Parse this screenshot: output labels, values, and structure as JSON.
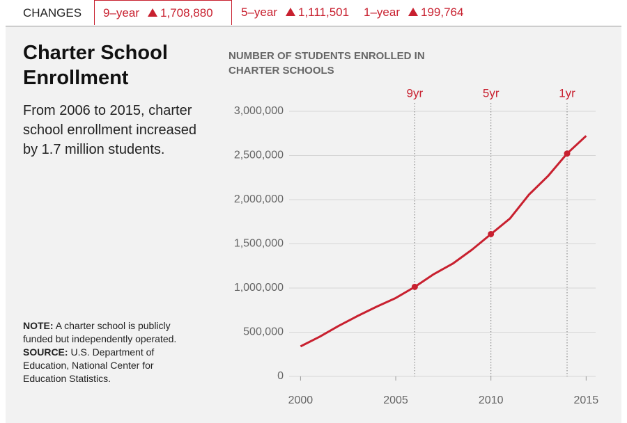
{
  "header": {
    "label": "CHANGES",
    "tabs": [
      {
        "label": "9–year",
        "value": "1,708,880",
        "active": true
      },
      {
        "label": "5–year",
        "value": "1,111,501",
        "active": false
      },
      {
        "label": "1–year",
        "value": "199,764",
        "active": false
      }
    ]
  },
  "chart_data": {
    "type": "line",
    "title": "Charter School Enrollment",
    "subtitle": "From 2006 to 2015, charter school enrollment increased by 1.7 million students.",
    "y_label": "NUMBER OF STUDENTS ENROLLED IN CHARTER SCHOOLS",
    "x": [
      2000,
      2001,
      2002,
      2003,
      2004,
      2005,
      2006,
      2007,
      2008,
      2009,
      2010,
      2011,
      2012,
      2013,
      2014,
      2015
    ],
    "series": [
      {
        "color": "#c8202f",
        "values": [
          339678,
          448343,
          571029,
          684119,
          789479,
          886988,
          1012906,
          1157359,
          1276731,
          1433116,
          1610285,
          1787091,
          2057599,
          2267814,
          2522022,
          2721786
        ]
      }
    ],
    "markers": [
      {
        "x": 2006,
        "label": "9yr"
      },
      {
        "x": 2010,
        "label": "5yr"
      },
      {
        "x": 2014,
        "label": "1yr"
      }
    ],
    "xlim": [
      1999.4,
      2015.5
    ],
    "xticks": [
      2000,
      2005,
      2010,
      2015
    ],
    "ylim": [
      0,
      3000000
    ],
    "yticks": [
      0,
      {
        "value": 500000,
        "label": "500,000"
      },
      {
        "value": 1000000,
        "label": "1,000,000"
      },
      {
        "value": 1500000,
        "label": "1,500,000"
      },
      {
        "value": 2000000,
        "label": "2,000,000"
      },
      {
        "value": 2500000,
        "label": "2,500,000"
      },
      {
        "value": 3000000,
        "label": "3,000,000"
      }
    ],
    "grid": true,
    "note": {
      "label": "NOTE:",
      "text": "A charter school is publicly funded but independently operated."
    },
    "source": {
      "label": "SOURCE:",
      "text": "U.S. Department of Education, National Center for Education Statistics."
    }
  }
}
